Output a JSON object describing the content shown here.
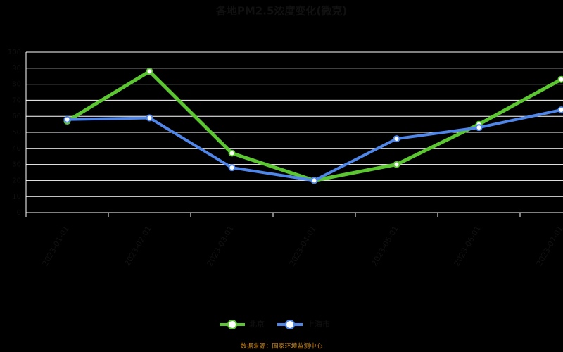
{
  "chart_data": {
    "type": "line",
    "title": "各地PM2.5浓度变化(微克)",
    "categories": [
      "2023-01-01",
      "2023-02-01",
      "2023-03-01",
      "2023-04-01",
      "2023-05-01",
      "2023-06-01",
      "2023-07-01"
    ],
    "series": [
      {
        "name": "北京",
        "color": "#5cc532",
        "values": [
          57,
          88,
          37,
          20,
          30,
          55,
          83
        ]
      },
      {
        "name": "上海市",
        "color": "#4f86e8",
        "values": [
          58,
          59,
          28,
          20,
          46,
          53,
          64
        ]
      }
    ],
    "ylim": [
      0,
      100
    ],
    "yticks": [
      0,
      10,
      20,
      30,
      40,
      50,
      60,
      70,
      80,
      90,
      100
    ],
    "grid": true,
    "source": "数据来源：国家环境监测中心"
  }
}
